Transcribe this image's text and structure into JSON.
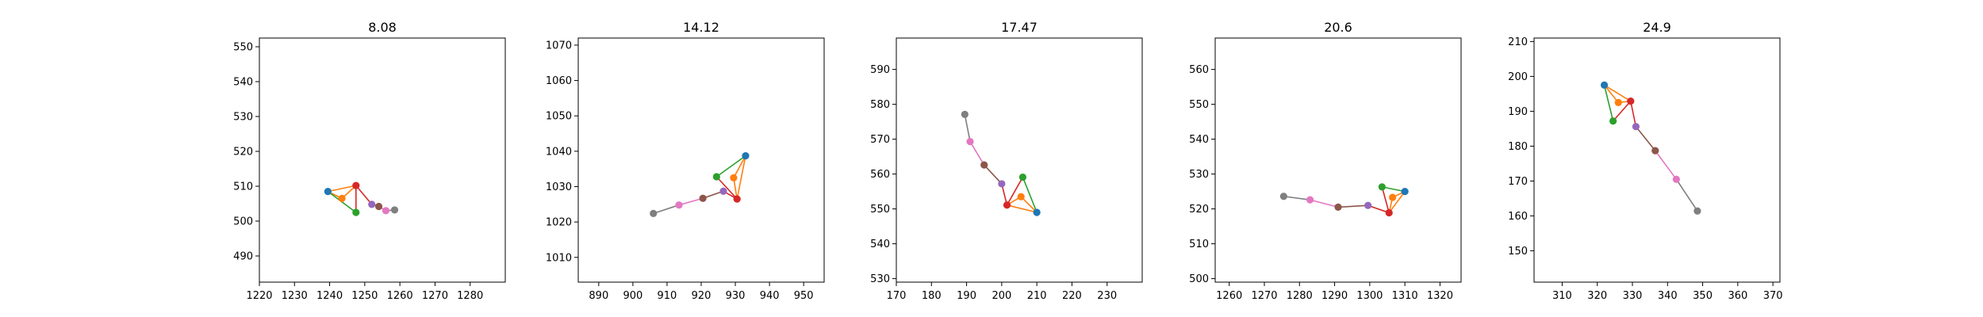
{
  "chart_data": [
    {
      "type": "scatter",
      "title": "8.08",
      "xlim": [
        1220,
        1290
      ],
      "ylim": [
        482.5,
        552.5
      ],
      "xticks": [
        1220,
        1230,
        1240,
        1250,
        1260,
        1270,
        1280
      ],
      "yticks": [
        490,
        500,
        510,
        520,
        530,
        540,
        550
      ],
      "points": [
        [
          1239.5,
          508.5
        ],
        [
          1243.5,
          506.5
        ],
        [
          1247.5,
          502.5
        ],
        [
          1247.5,
          510.2
        ],
        [
          1252.0,
          504.8
        ],
        [
          1254.0,
          504.2
        ],
        [
          1256.0,
          503.0
        ],
        [
          1258.5,
          503.2
        ]
      ]
    },
    {
      "type": "scatter",
      "title": "14.12",
      "xlim": [
        884,
        956
      ],
      "ylim": [
        1003,
        1072
      ],
      "xticks": [
        890,
        900,
        910,
        920,
        930,
        940,
        950
      ],
      "yticks": [
        1010,
        1020,
        1030,
        1040,
        1050,
        1060,
        1070
      ],
      "points": [
        [
          933.0,
          1038.7
        ],
        [
          929.5,
          1032.5
        ],
        [
          924.5,
          1032.8
        ],
        [
          930.5,
          1026.5
        ],
        [
          926.5,
          1028.7
        ],
        [
          920.5,
          1026.7
        ],
        [
          913.5,
          1024.8
        ],
        [
          906.0,
          1022.4
        ]
      ]
    },
    {
      "type": "scatter",
      "title": "17.47",
      "xlim": [
        170,
        240
      ],
      "ylim": [
        529,
        599
      ],
      "xticks": [
        170,
        180,
        190,
        200,
        210,
        220,
        230
      ],
      "yticks": [
        530,
        540,
        550,
        560,
        570,
        580,
        590
      ],
      "points": [
        [
          210.0,
          549.0
        ],
        [
          205.5,
          553.5
        ],
        [
          206.0,
          559.1
        ],
        [
          201.5,
          551.1
        ],
        [
          200.0,
          557.2
        ],
        [
          195.0,
          562.6
        ],
        [
          191.0,
          569.3
        ],
        [
          189.5,
          577.1
        ]
      ]
    },
    {
      "type": "scatter",
      "title": "20.6",
      "xlim": [
        1256,
        1326
      ],
      "ylim": [
        499,
        569
      ],
      "xticks": [
        1260,
        1270,
        1280,
        1290,
        1300,
        1310,
        1320
      ],
      "yticks": [
        500,
        510,
        520,
        530,
        540,
        550,
        560
      ],
      "points": [
        [
          1310.0,
          525.0
        ],
        [
          1306.5,
          523.3
        ],
        [
          1303.5,
          526.3
        ],
        [
          1305.5,
          518.9
        ],
        [
          1299.5,
          521.0
        ],
        [
          1291.0,
          520.5
        ],
        [
          1283.0,
          522.6
        ],
        [
          1275.5,
          523.6
        ]
      ]
    },
    {
      "type": "scatter",
      "title": "24.9",
      "xlim": [
        302,
        372
      ],
      "ylim": [
        141,
        211
      ],
      "xticks": [
        310,
        320,
        330,
        340,
        350,
        360,
        370
      ],
      "yticks": [
        150,
        160,
        170,
        180,
        190,
        200,
        210
      ],
      "points": [
        [
          322.0,
          197.5
        ],
        [
          326.0,
          192.5
        ],
        [
          324.5,
          187.2
        ],
        [
          329.5,
          192.9
        ],
        [
          331.0,
          185.6
        ],
        [
          336.5,
          178.7
        ],
        [
          342.5,
          170.5
        ],
        [
          348.5,
          161.4
        ]
      ]
    }
  ],
  "series_colors": [
    "#1f77b4",
    "#ff7f0e",
    "#2ca02c",
    "#d62728",
    "#9467bd",
    "#8c564b",
    "#e377c2",
    "#7f7f7f"
  ],
  "edges": [
    [
      0,
      1
    ],
    [
      1,
      3
    ],
    [
      3,
      0
    ],
    [
      0,
      2
    ],
    [
      2,
      3
    ],
    [
      3,
      4
    ],
    [
      4,
      5
    ],
    [
      5,
      6
    ],
    [
      6,
      7
    ]
  ],
  "edge_colors": [
    "#ff7f0e",
    "#ff7f0e",
    "#ff7f0e",
    "#2ca02c",
    "#d62728",
    "#d62728",
    "#8c564b",
    "#e377c2",
    "#7f7f7f"
  ]
}
